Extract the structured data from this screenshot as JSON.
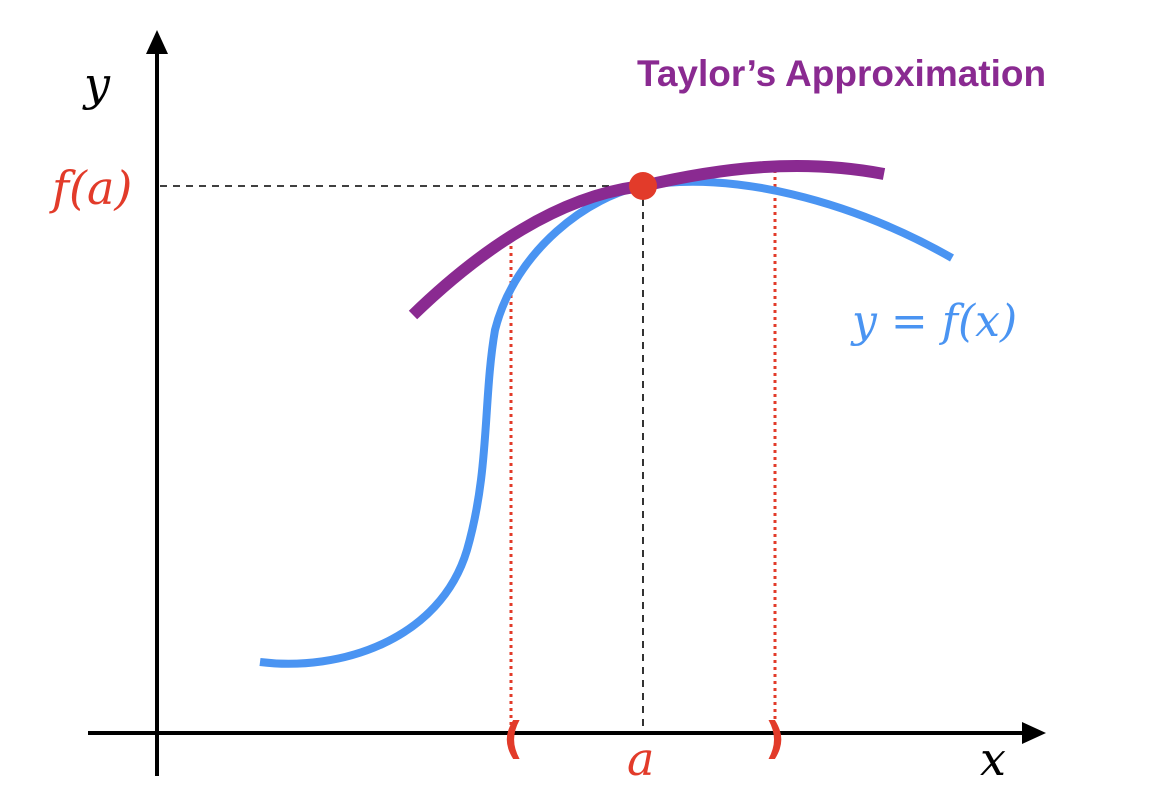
{
  "title": "Taylor’s Approximation",
  "labels": {
    "y_axis": "y",
    "x_axis": "x",
    "f_of_a": "f(a)",
    "a": "a",
    "curve": "y = f(x)",
    "interval_left": "(",
    "interval_right": ")"
  },
  "colors": {
    "axis": "#000000",
    "function_curve": "#4a94f2",
    "taylor_curve": "#8a2a91",
    "point": "#e23b2a",
    "interval_markers": "#e23b2a",
    "guide_lines": "#000000"
  }
}
